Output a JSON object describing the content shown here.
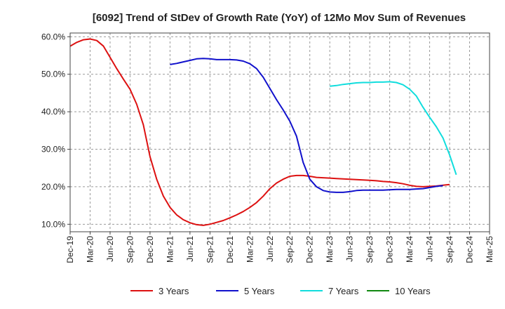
{
  "chart_data": {
    "type": "line",
    "title": "[6092]  Trend of StDev of Growth Rate (YoY) of 12Mo Mov Sum of Revenues",
    "xlabel": "",
    "ylabel": "",
    "ylim": [
      8,
      61
    ],
    "y_ticks": [
      10,
      20,
      30,
      40,
      50,
      60
    ],
    "y_tick_labels": [
      "10.0%",
      "20.0%",
      "30.0%",
      "40.0%",
      "50.0%",
      "60.0%"
    ],
    "x_tick_labels": [
      "Dec-19",
      "Mar-20",
      "Jun-20",
      "Sep-20",
      "Dec-20",
      "Mar-21",
      "Jun-21",
      "Sep-21",
      "Dec-21",
      "Mar-22",
      "Jun-22",
      "Sep-22",
      "Dec-22",
      "Mar-23",
      "Jun-23",
      "Sep-23",
      "Dec-23",
      "Mar-24",
      "Jun-24",
      "Sep-24",
      "Dec-24",
      "Mar-25"
    ],
    "grid": true,
    "legend_position": "bottom",
    "series": [
      {
        "name": "3 Years",
        "color": "#dd1111",
        "start_index": 0,
        "values": [
          57.5,
          58.5,
          59.2,
          59.4,
          59.0,
          57.5,
          54.5,
          51.5,
          48.7,
          46.0,
          42.0,
          36.5,
          28.0,
          22.0,
          17.5,
          14.5,
          12.5,
          11.2,
          10.4,
          9.9,
          9.7,
          10.0,
          10.5,
          11.0,
          11.7,
          12.5,
          13.4,
          14.5,
          15.8,
          17.5,
          19.5,
          21.0,
          22.0,
          22.8,
          23.0,
          23.0,
          22.8,
          22.5,
          22.4,
          22.3,
          22.2,
          22.1,
          22.0,
          21.9,
          21.8,
          21.7,
          21.6,
          21.4,
          21.3,
          21.1,
          20.8,
          20.4,
          20.1,
          20.0,
          20.1,
          20.2,
          20.4,
          20.6
        ]
      },
      {
        "name": "5 Years",
        "color": "#1111cc",
        "start_index": 15,
        "values": [
          52.6,
          52.9,
          53.3,
          53.7,
          54.1,
          54.2,
          54.1,
          53.9,
          53.9,
          53.9,
          53.8,
          53.5,
          52.8,
          51.5,
          49.2,
          46.2,
          43.2,
          40.5,
          37.5,
          33.5,
          26.5,
          22.0,
          20.0,
          19.0,
          18.6,
          18.5,
          18.5,
          18.7,
          19.0,
          19.1,
          19.1,
          19.1,
          19.1,
          19.2,
          19.3,
          19.3,
          19.3,
          19.4,
          19.5,
          19.8,
          20.1,
          20.3
        ]
      },
      {
        "name": "7 Years",
        "color": "#11dddd",
        "start_index": 39,
        "values": [
          46.8,
          47.0,
          47.3,
          47.5,
          47.7,
          47.8,
          47.8,
          47.9,
          47.9,
          48.0,
          47.8,
          47.2,
          46.0,
          44.2,
          41.2,
          38.5,
          36.0,
          33.0,
          28.5,
          23.2
        ]
      },
      {
        "name": "10 Years",
        "color": "#118811",
        "start_index": 0,
        "values": []
      }
    ]
  }
}
